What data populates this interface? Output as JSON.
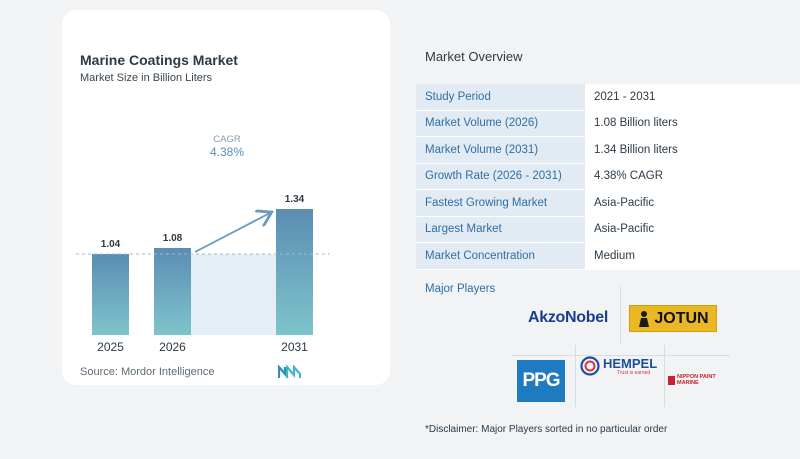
{
  "chart_data": {
    "type": "bar",
    "title": "Marine Coatings Market",
    "subtitle": "Market Size in Billion Liters",
    "categories": [
      "2025",
      "2026",
      "2031"
    ],
    "values": [
      1.04,
      1.08,
      1.34
    ],
    "value_labels": [
      "1.04",
      "1.08",
      "1.34"
    ],
    "cagr_label": "CAGR",
    "cagr_value": "4.38%",
    "bar_color_top": "#5b8db3",
    "bar_color_bottom": "#7ec4cc",
    "source": "Source: Mordor Intelligence"
  },
  "overview": {
    "title": "Market Overview",
    "rows": [
      {
        "key": "Study Period",
        "value": "2021 - 2031"
      },
      {
        "key": "Market Volume (2026)",
        "value": "1.08 Billion liters"
      },
      {
        "key": "Market Volume (2031)",
        "value": "1.34 Billion liters"
      },
      {
        "key": "Growth Rate (2026 - 2031)",
        "value": "4.38% CAGR"
      },
      {
        "key": "Fastest Growing Market",
        "value": "Asia-Pacific"
      },
      {
        "key": "Largest Market",
        "value": "Asia-Pacific"
      },
      {
        "key": "Market Concentration",
        "value": "Medium"
      }
    ]
  },
  "players": {
    "title": "Major Players",
    "logos": {
      "akzonobel": "AkzoNobel",
      "jotun": "JOTUN",
      "ppg": "PPG",
      "hempel": "HEMPEL",
      "hempel_tagline": "Trust is earned",
      "nippon_line1": "NIPPON PAINT",
      "nippon_line2": "MARINE"
    },
    "disclaimer": "*Disclaimer: Major Players sorted in no particular order"
  }
}
